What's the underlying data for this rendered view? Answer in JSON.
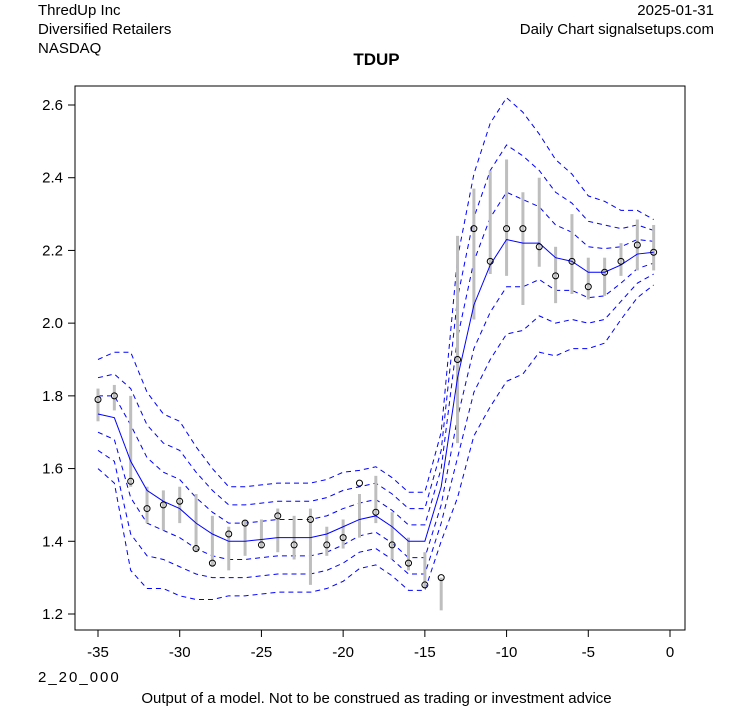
{
  "header": {
    "company": "ThredUp Inc",
    "sector": "Diversified Retailers",
    "exchange": "NASDAQ",
    "date": "2025-01-31",
    "source": "Daily Chart signalsetups.com"
  },
  "footer": {
    "code": "2_20_000",
    "disclaimer": "Output of a model. Not to be construed as trading or investment advice"
  },
  "chart_data": {
    "type": "line",
    "title": "TDUP",
    "xlim": [
      -36,
      0
    ],
    "ylim": [
      1.15,
      2.65
    ],
    "xticks": [
      -35,
      -30,
      -25,
      -20,
      -15,
      -10,
      -5,
      0
    ],
    "yticks": [
      1.2,
      1.4,
      1.6,
      1.8,
      2.0,
      2.2,
      2.4,
      2.6
    ],
    "x": [
      -35,
      -34,
      -33,
      -32,
      -31,
      -30,
      -29,
      -28,
      -27,
      -26,
      -25,
      -24,
      -23,
      -22,
      -21,
      -20,
      -19,
      -18,
      -17,
      -16,
      -15,
      -14,
      -13,
      -12,
      -11,
      -10,
      -9,
      -8,
      -7,
      -6,
      -5,
      -4,
      -3,
      -2,
      -1
    ],
    "close": [
      1.79,
      1.8,
      1.565,
      1.49,
      1.5,
      1.51,
      1.38,
      1.34,
      1.42,
      1.45,
      1.39,
      1.47,
      1.39,
      1.46,
      1.39,
      1.41,
      1.56,
      1.48,
      1.39,
      1.34,
      1.28,
      1.3,
      1.9,
      2.26,
      2.17,
      2.26,
      2.26,
      2.21,
      2.13,
      2.17,
      2.1,
      2.14,
      2.17,
      2.215,
      2.195
    ],
    "high": [
      1.82,
      1.83,
      1.8,
      1.55,
      1.54,
      1.55,
      1.53,
      1.47,
      1.44,
      1.46,
      1.46,
      1.49,
      1.47,
      1.49,
      1.44,
      1.46,
      1.53,
      1.58,
      1.48,
      1.41,
      1.37,
      1.3,
      2.24,
      2.37,
      2.42,
      2.45,
      2.36,
      2.4,
      2.21,
      2.3,
      2.18,
      2.18,
      2.22,
      2.285,
      2.27
    ],
    "low": [
      1.73,
      1.76,
      1.55,
      1.45,
      1.43,
      1.45,
      1.37,
      1.33,
      1.32,
      1.36,
      1.38,
      1.37,
      1.35,
      1.28,
      1.36,
      1.38,
      1.41,
      1.45,
      1.35,
      1.32,
      1.27,
      1.21,
      1.67,
      2.01,
      2.135,
      2.13,
      2.05,
      2.155,
      2.055,
      2.08,
      2.065,
      2.075,
      2.13,
      2.145,
      2.145
    ],
    "fit": [
      1.75,
      1.74,
      1.62,
      1.54,
      1.51,
      1.49,
      1.45,
      1.42,
      1.4,
      1.4,
      1.405,
      1.41,
      1.41,
      1.41,
      1.42,
      1.44,
      1.46,
      1.47,
      1.44,
      1.4,
      1.4,
      1.55,
      1.85,
      2.05,
      2.16,
      2.23,
      2.22,
      2.22,
      2.18,
      2.17,
      2.14,
      2.14,
      2.16,
      2.19,
      2.195
    ],
    "band_sd": [
      0.05,
      0.06,
      0.1,
      0.09,
      0.08,
      0.08,
      0.07,
      0.06,
      0.05,
      0.05,
      0.05,
      0.05,
      0.05,
      0.05,
      0.05,
      0.05,
      0.045,
      0.045,
      0.045,
      0.045,
      0.045,
      0.05,
      0.11,
      0.12,
      0.13,
      0.13,
      0.12,
      0.1,
      0.09,
      0.08,
      0.07,
      0.065,
      0.05,
      0.04,
      0.03
    ],
    "colors": {
      "fit": "#0000ff",
      "band": "#0000ff",
      "range": "#bebebe",
      "point": "#000000"
    }
  }
}
